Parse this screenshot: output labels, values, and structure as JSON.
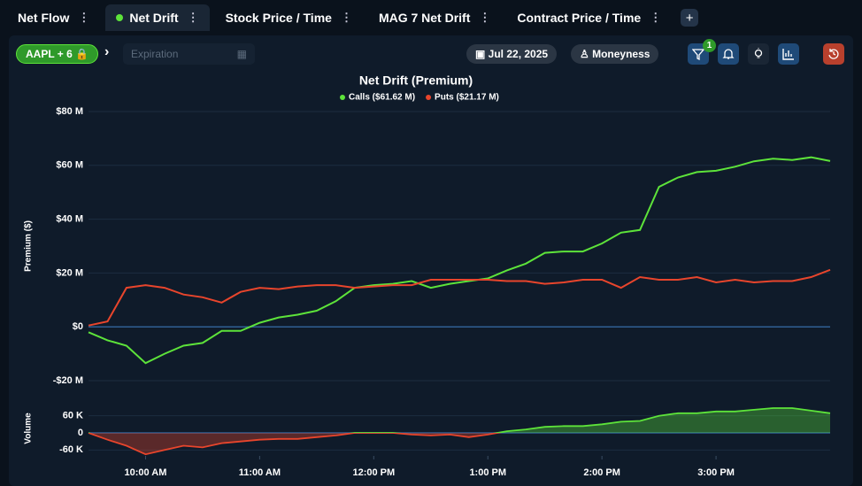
{
  "tabs": [
    {
      "label": "Net Flow"
    },
    {
      "label": "Net Drift",
      "active": true
    },
    {
      "label": "Stock Price / Time"
    },
    {
      "label": "MAG 7 Net Drift"
    },
    {
      "label": "Contract Price / Time"
    }
  ],
  "toolbar": {
    "ticker": "AAPL + 6",
    "expiration_placeholder": "Expiration",
    "date": "Jul 22, 2025",
    "moneyness": "Moneyness",
    "filter_badge": 1
  },
  "chart_data": [
    {
      "type": "line",
      "title": "Net Drift (Premium)",
      "y_label": "Premium ($)",
      "grid": true,
      "xlim": [
        9.5,
        16
      ],
      "ylim": [
        -20,
        80
      ],
      "yticks": [
        {
          "value": 80,
          "label": "$80 M"
        },
        {
          "value": 60,
          "label": "$60 M"
        },
        {
          "value": 40,
          "label": "$40 M"
        },
        {
          "value": 20,
          "label": "$20 M"
        },
        {
          "value": 0,
          "label": "$0"
        },
        {
          "value": -20,
          "label": "-$20 M"
        }
      ],
      "x": [
        9.5,
        9.667,
        9.833,
        10,
        10.167,
        10.333,
        10.5,
        10.667,
        10.833,
        11,
        11.167,
        11.333,
        11.5,
        11.667,
        11.833,
        12,
        12.167,
        12.333,
        12.5,
        12.667,
        12.833,
        13,
        13.167,
        13.333,
        13.5,
        13.667,
        13.833,
        14,
        14.167,
        14.333,
        14.5,
        14.667,
        14.833,
        15,
        15.167,
        15.333,
        15.5,
        15.667,
        15.833,
        16
      ],
      "series": [
        {
          "name": "Calls ($61.62 M)",
          "color": "#5de33a",
          "values": [
            -2,
            -5,
            -7,
            -13.5,
            -10,
            -7,
            -6,
            -1.5,
            -1.5,
            1.5,
            3.5,
            4.5,
            6,
            9.5,
            14.5,
            15.5,
            16,
            17,
            14.5,
            16,
            17,
            18,
            21,
            23.5,
            27.5,
            28,
            28,
            31,
            35,
            36,
            52,
            55.5,
            57.5,
            58,
            59.5,
            61.5,
            62.5,
            62,
            63,
            61.62
          ]
        },
        {
          "name": "Puts ($21.17 M)",
          "color": "#e8452c",
          "values": [
            0.5,
            2,
            14.5,
            15.5,
            14.5,
            12,
            11,
            9,
            13,
            14.5,
            14,
            15,
            15.5,
            15.5,
            14.5,
            15,
            15.5,
            15.5,
            17.5,
            17.5,
            17.5,
            17.5,
            17,
            17,
            16,
            16.5,
            17.5,
            17.5,
            14.5,
            18.5,
            17.5,
            17.5,
            18.5,
            16.5,
            17.5,
            16.5,
            17,
            17,
            18.5,
            21.17
          ]
        }
      ]
    },
    {
      "type": "area",
      "y_label": "Volume",
      "grid": true,
      "xlim": [
        9.5,
        16
      ],
      "ylim": [
        -90,
        90
      ],
      "yticks": [
        {
          "value": 60,
          "label": "60 K"
        },
        0,
        {
          "value": -60,
          "label": "-60 K"
        }
      ],
      "xticks": [
        {
          "value": 10,
          "label": "10:00 AM"
        },
        {
          "value": 11,
          "label": "11:00 AM"
        },
        {
          "value": 12,
          "label": "12:00 PM"
        },
        {
          "value": 13,
          "label": "1:00 PM"
        },
        {
          "value": 14,
          "label": "2:00 PM"
        },
        {
          "value": 15,
          "label": "3:00 PM"
        }
      ],
      "positive_color": "#5de33a",
      "negative_color": "#e8452c",
      "x": [
        9.5,
        9.667,
        9.833,
        10,
        10.167,
        10.333,
        10.5,
        10.667,
        10.833,
        11,
        11.167,
        11.333,
        11.5,
        11.667,
        11.833,
        12,
        12.167,
        12.333,
        12.5,
        12.667,
        12.833,
        13,
        13.167,
        13.333,
        13.5,
        13.667,
        13.833,
        14,
        14.167,
        14.333,
        14.5,
        14.667,
        14.833,
        15,
        15.167,
        15.333,
        15.5,
        15.667,
        15.833,
        16
      ],
      "values": [
        0,
        -24,
        -45,
        -75,
        -60,
        -45,
        -51,
        -36,
        -30,
        -24,
        -21,
        -21,
        -15,
        -9,
        0,
        0,
        0,
        -6,
        -9,
        -6,
        -15,
        -6,
        6,
        12,
        21,
        24,
        24,
        30,
        39,
        42,
        60,
        69,
        69,
        75,
        75,
        81,
        87,
        87,
        78,
        69
      ]
    }
  ]
}
